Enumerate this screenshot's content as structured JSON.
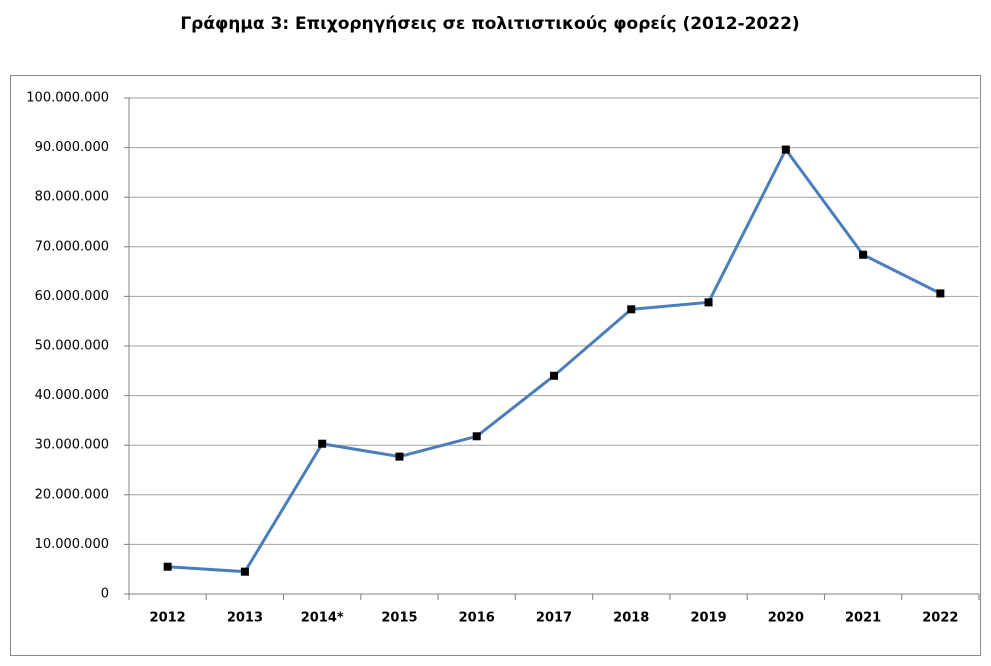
{
  "chart_data": {
    "type": "line",
    "title": "Γράφημα 3: Επιχορηγήσεις σε πολιτιστικούς φορείς (2012-2022)",
    "categories": [
      "2012",
      "2013",
      "2014*",
      "2015",
      "2016",
      "2017",
      "2018",
      "2019",
      "2020",
      "2021",
      "2022"
    ],
    "series": [
      {
        "name": "Επιχορηγήσεις",
        "color": "#4a7ebb",
        "marker_color": "#000000",
        "values": [
          5500000,
          4500000,
          30300000,
          27700000,
          31800000,
          44000000,
          57400000,
          58800000,
          89600000,
          68400000,
          60600000
        ]
      }
    ],
    "ylim": [
      0,
      100000000
    ],
    "yticks": [
      0,
      {
        "value": 10000000,
        "label": "10.000.000"
      },
      {
        "value": 20000000,
        "label": "20.000.000"
      },
      {
        "value": 30000000,
        "label": "30.000.000"
      },
      {
        "value": 40000000,
        "label": "40.000.000"
      },
      {
        "value": 50000000,
        "label": "50.000.000"
      },
      {
        "value": 60000000,
        "label": "60.000.000"
      },
      {
        "value": 70000000,
        "label": "70.000.000"
      },
      {
        "value": 80000000,
        "label": "80.000.000"
      },
      {
        "value": 90000000,
        "label": "90.000.000"
      },
      {
        "value": 100000000,
        "label": "100.000.000"
      }
    ],
    "grid": true
  }
}
